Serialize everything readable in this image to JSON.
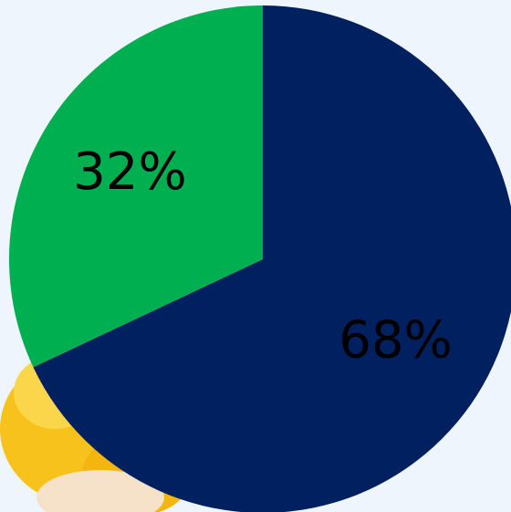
{
  "chart_data": {
    "type": "pie",
    "values": [
      68,
      32
    ],
    "value_labels": [
      "68%",
      "32%"
    ],
    "colors": [
      "#002060",
      "#00b050"
    ]
  }
}
